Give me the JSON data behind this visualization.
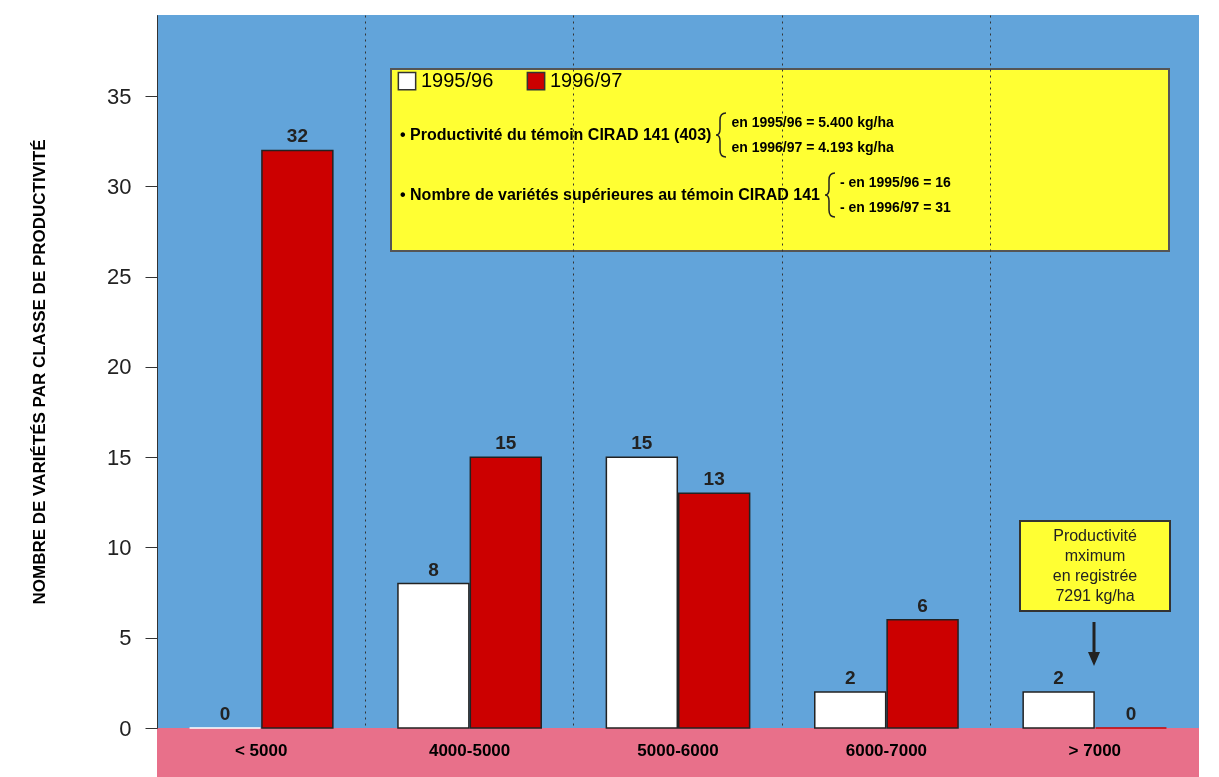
{
  "chart_data": {
    "type": "bar",
    "ylabel": "NOMBRE DE VARIÉTÉS PAR CLASSE DE PRODUCTIVITÉ",
    "categories": [
      "< 5000",
      "4000-5000",
      "5000-6000",
      "6000-7000",
      "> 7000"
    ],
    "series": [
      {
        "name": "1995/96",
        "color": "#ffffff",
        "values": [
          0,
          8,
          15,
          2,
          2
        ]
      },
      {
        "name": "1996/97",
        "color": "#cc0000",
        "values": [
          32,
          15,
          13,
          6,
          0
        ]
      }
    ],
    "ylim": [
      0,
      39.5
    ],
    "yticks": [
      0,
      5,
      10,
      15,
      20,
      25,
      30,
      35
    ],
    "grid": "x",
    "legend": "top",
    "data_labels": true,
    "annotations": [
      "• Productivité du témoin CIRAD 141 (403)",
      "en 1995/96 = 5.400 kg/ha",
      "en 1996/97 = 4.193 kg/ha",
      "• Nombre de variétés supérieures au témoin CIRAD 141",
      "- en 1995/96 = 16",
      "- en 1996/97 = 31",
      "Productivité\nmximum\nen registrée\n7291 kg/ha"
    ]
  }
}
